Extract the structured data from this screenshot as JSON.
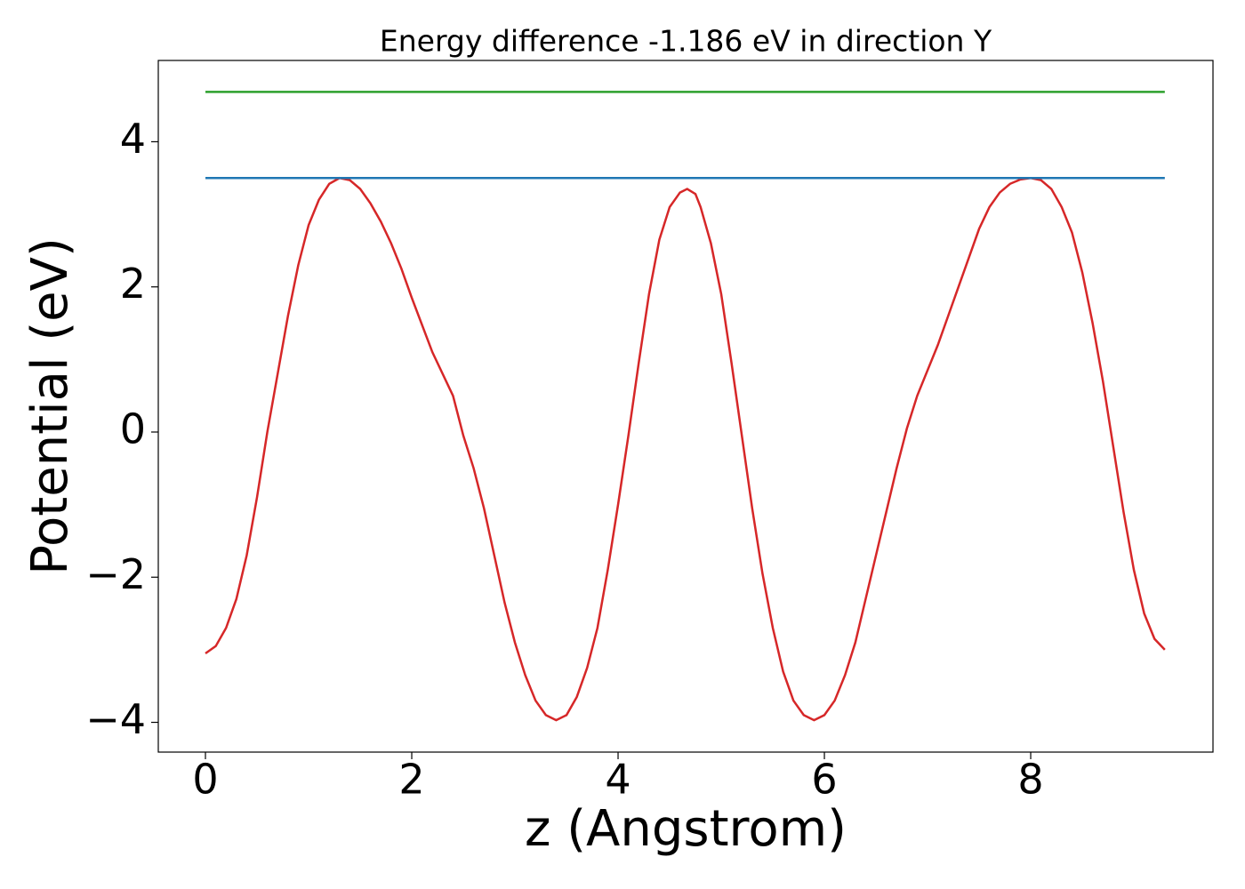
{
  "chart_data": {
    "type": "line",
    "title": "Energy difference -1.186 eV in direction Y",
    "xlabel": "z (Angstrom)",
    "ylabel": "Potential (eV)",
    "xlim": [
      -0.457,
      9.767
    ],
    "ylim": [
      -4.41,
      5.12
    ],
    "xticks": [
      0,
      2,
      4,
      6,
      8
    ],
    "yticks": [
      {
        "value": -4,
        "label": "−4"
      },
      {
        "value": -2,
        "label": "−2"
      },
      0,
      2,
      4
    ],
    "grid": false,
    "series": [
      {
        "color": "#d62728",
        "x": [
          0,
          0.1,
          0.2,
          0.3,
          0.4,
          0.5,
          0.6,
          0.7,
          0.8,
          0.9,
          1.0,
          1.1,
          1.2,
          1.3,
          1.4,
          1.5,
          1.6,
          1.7,
          1.8,
          1.9,
          2.0,
          2.2,
          2.4,
          2.5,
          2.6,
          2.7,
          2.8,
          2.9,
          3.0,
          3.1,
          3.2,
          3.3,
          3.4,
          3.5,
          3.6,
          3.7,
          3.8,
          3.9,
          4.0,
          4.1,
          4.2,
          4.3,
          4.4,
          4.5,
          4.6,
          4.67,
          4.75,
          4.8,
          4.9,
          5.0,
          5.1,
          5.2,
          5.3,
          5.4,
          5.5,
          5.6,
          5.7,
          5.8,
          5.9,
          6.0,
          6.1,
          6.2,
          6.3,
          6.4,
          6.5,
          6.6,
          6.7,
          6.8,
          6.9,
          7.0,
          7.1,
          7.2,
          7.3,
          7.4,
          7.5,
          7.6,
          7.7,
          7.8,
          7.9,
          8.0,
          8.1,
          8.2,
          8.3,
          8.4,
          8.5,
          8.6,
          8.7,
          8.8,
          8.9,
          9.0,
          9.1,
          9.2,
          9.3
        ],
        "values": [
          -3.05,
          -2.95,
          -2.7,
          -2.3,
          -1.7,
          -0.9,
          0,
          0.8,
          1.6,
          2.3,
          2.85,
          3.2,
          3.42,
          3.5,
          3.47,
          3.35,
          3.15,
          2.9,
          2.6,
          2.25,
          1.85,
          1.1,
          0.5,
          -0.05,
          -0.5,
          -1.05,
          -1.7,
          -2.35,
          -2.9,
          -3.35,
          -3.7,
          -3.9,
          -3.97,
          -3.9,
          -3.65,
          -3.25,
          -2.7,
          -1.9,
          -1.0,
          -0.05,
          0.95,
          1.9,
          2.65,
          3.1,
          3.3,
          3.35,
          3.28,
          3.1,
          2.6,
          1.9,
          0.95,
          -0.05,
          -1.05,
          -1.95,
          -2.7,
          -3.3,
          -3.7,
          -3.9,
          -3.97,
          -3.9,
          -3.7,
          -3.35,
          -2.9,
          -2.3,
          -1.7,
          -1.1,
          -0.5,
          0.05,
          0.5,
          0.85,
          1.2,
          1.6,
          2.0,
          2.4,
          2.8,
          3.1,
          3.3,
          3.42,
          3.48,
          3.5,
          3.47,
          3.35,
          3.1,
          2.75,
          2.2,
          1.5,
          0.7,
          -0.2,
          -1.1,
          -1.9,
          -2.5,
          -2.85,
          -3.0
        ]
      },
      {
        "color": "#1f77b4",
        "x": [
          0,
          9.3
        ],
        "values": [
          3.5,
          3.5
        ]
      },
      {
        "color": "#2ca02c",
        "x": [
          0,
          9.3
        ],
        "values": [
          4.686,
          4.686
        ]
      }
    ]
  }
}
